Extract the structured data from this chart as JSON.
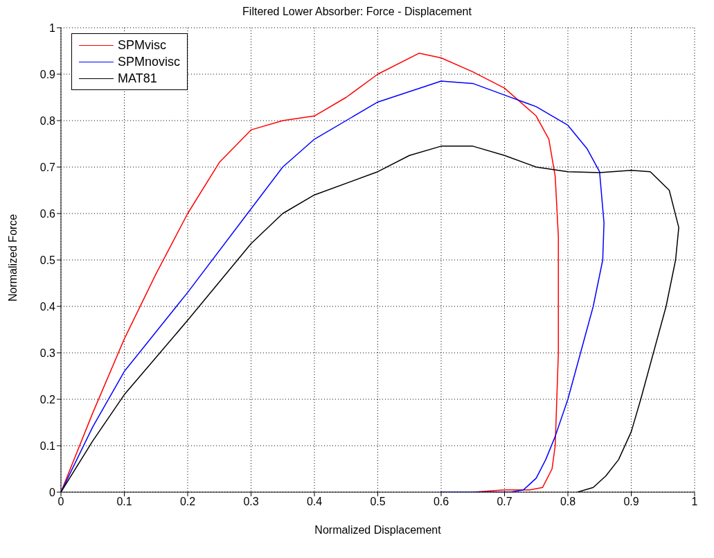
{
  "chart_data": {
    "type": "line",
    "title": "Filtered Lower Absorber: Force - Displacement",
    "xlabel": "Normalized Displacement",
    "ylabel": "Normalized Force",
    "xlim": [
      0,
      1
    ],
    "ylim": [
      0,
      1
    ],
    "xticks": [
      0,
      0.1,
      0.2,
      0.3,
      0.4,
      0.5,
      0.6,
      0.7,
      0.8,
      0.9,
      1
    ],
    "yticks": [
      0,
      0.1,
      0.2,
      0.3,
      0.4,
      0.5,
      0.6,
      0.7,
      0.8,
      0.9,
      1
    ],
    "grid": true,
    "legend": "top left",
    "series": [
      {
        "name": "SPMvisc",
        "color": "#ff0000",
        "x": [
          0,
          0.05,
          0.1,
          0.15,
          0.2,
          0.25,
          0.3,
          0.35,
          0.4,
          0.45,
          0.5,
          0.565,
          0.6,
          0.65,
          0.7,
          0.75,
          0.77,
          0.78,
          0.785,
          0.785,
          0.78,
          0.775,
          0.76,
          0.74,
          0.7,
          0.65
        ],
        "values": [
          0,
          0.17,
          0.33,
          0.47,
          0.6,
          0.71,
          0.78,
          0.8,
          0.81,
          0.85,
          0.9,
          0.945,
          0.935,
          0.905,
          0.87,
          0.81,
          0.76,
          0.68,
          0.55,
          0.3,
          0.1,
          0.05,
          0.01,
          0.005,
          0.005,
          0
        ]
      },
      {
        "name": "SPMnovisc",
        "color": "#0000ff",
        "x": [
          0,
          0.05,
          0.1,
          0.2,
          0.3,
          0.35,
          0.4,
          0.5,
          0.6,
          0.65,
          0.7,
          0.75,
          0.8,
          0.83,
          0.85,
          0.857,
          0.855,
          0.84,
          0.82,
          0.8,
          0.78,
          0.765,
          0.75,
          0.73,
          0.71,
          0.6
        ],
        "values": [
          0,
          0.14,
          0.26,
          0.43,
          0.61,
          0.7,
          0.76,
          0.84,
          0.885,
          0.88,
          0.855,
          0.83,
          0.79,
          0.74,
          0.69,
          0.58,
          0.5,
          0.4,
          0.3,
          0.2,
          0.12,
          0.07,
          0.03,
          0.005,
          0,
          0
        ]
      },
      {
        "name": "MAT81",
        "color": "#000000",
        "x": [
          0,
          0.05,
          0.1,
          0.2,
          0.3,
          0.35,
          0.4,
          0.5,
          0.55,
          0.6,
          0.65,
          0.7,
          0.75,
          0.8,
          0.85,
          0.9,
          0.93,
          0.96,
          0.975,
          0.97,
          0.955,
          0.935,
          0.915,
          0.9,
          0.88,
          0.86,
          0.84,
          0.815
        ],
        "values": [
          0,
          0.11,
          0.21,
          0.37,
          0.535,
          0.6,
          0.64,
          0.69,
          0.725,
          0.745,
          0.745,
          0.725,
          0.7,
          0.69,
          0.688,
          0.693,
          0.69,
          0.65,
          0.57,
          0.5,
          0.4,
          0.3,
          0.2,
          0.13,
          0.07,
          0.035,
          0.01,
          0
        ]
      }
    ]
  }
}
